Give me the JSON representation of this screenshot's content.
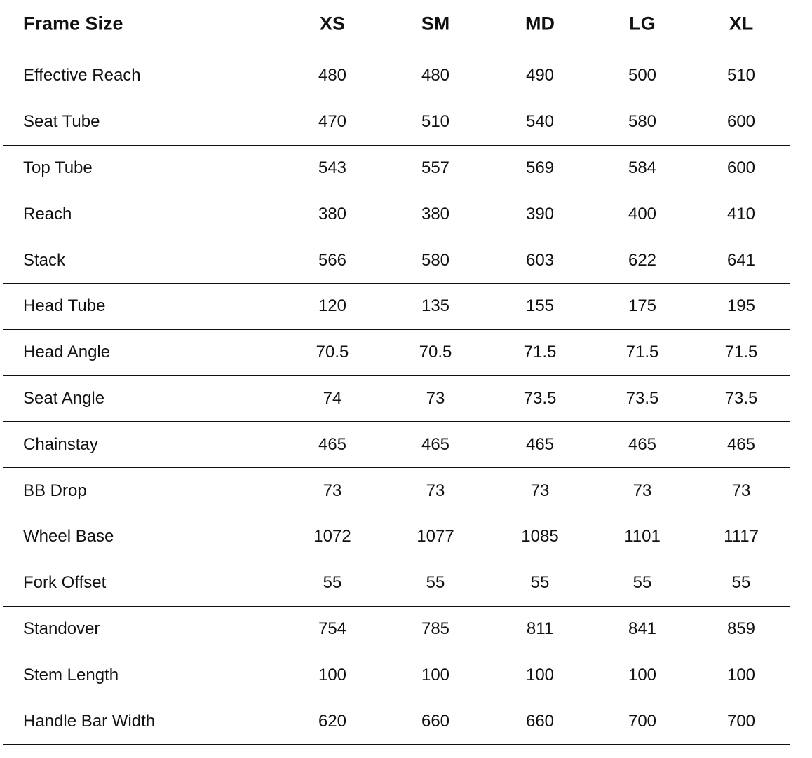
{
  "header": {
    "label": "Frame Size",
    "sizes": [
      "XS",
      "SM",
      "MD",
      "LG",
      "XL"
    ]
  },
  "rows": [
    {
      "label": "Effective Reach",
      "values": [
        "480",
        "480",
        "490",
        "500",
        "510"
      ]
    },
    {
      "label": "Seat Tube",
      "values": [
        "470",
        "510",
        "540",
        "580",
        "600"
      ]
    },
    {
      "label": "Top Tube",
      "values": [
        "543",
        "557",
        "569",
        "584",
        "600"
      ]
    },
    {
      "label": "Reach",
      "values": [
        "380",
        "380",
        "390",
        "400",
        "410"
      ]
    },
    {
      "label": "Stack",
      "values": [
        "566",
        "580",
        "603",
        "622",
        "641"
      ]
    },
    {
      "label": "Head Tube",
      "values": [
        "120",
        "135",
        "155",
        "175",
        "195"
      ]
    },
    {
      "label": "Head Angle",
      "values": [
        "70.5",
        "70.5",
        "71.5",
        "71.5",
        "71.5"
      ]
    },
    {
      "label": "Seat Angle",
      "values": [
        "74",
        "73",
        "73.5",
        "73.5",
        "73.5"
      ]
    },
    {
      "label": "Chainstay",
      "values": [
        "465",
        "465",
        "465",
        "465",
        "465"
      ]
    },
    {
      "label": "BB Drop",
      "values": [
        "73",
        "73",
        "73",
        "73",
        "73"
      ]
    },
    {
      "label": "Wheel Base",
      "values": [
        "1072",
        "1077",
        "1085",
        "1101",
        "1117"
      ]
    },
    {
      "label": "Fork Offset",
      "values": [
        "55",
        "55",
        "55",
        "55",
        "55"
      ]
    },
    {
      "label": "Standover",
      "values": [
        "754",
        "785",
        "811",
        "841",
        "859"
      ]
    },
    {
      "label": "Stem Length",
      "values": [
        "100",
        "100",
        "100",
        "100",
        "100"
      ]
    },
    {
      "label": "Handle Bar Width",
      "values": [
        "620",
        "660",
        "660",
        "700",
        "700"
      ]
    }
  ]
}
